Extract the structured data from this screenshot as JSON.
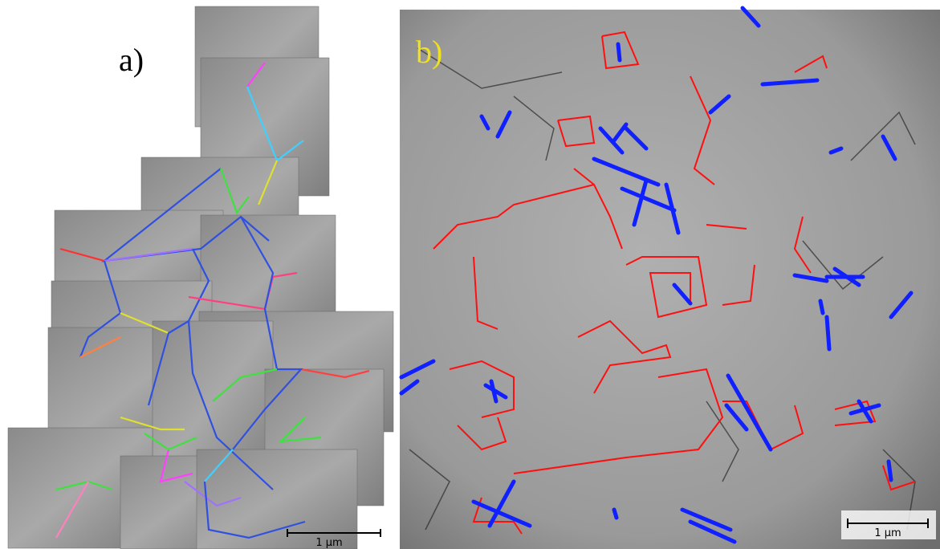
{
  "panels": [
    {
      "label": "a)",
      "scale_bar": "1 μm"
    },
    {
      "label": "b)",
      "scale_bar": "1 μm"
    }
  ]
}
